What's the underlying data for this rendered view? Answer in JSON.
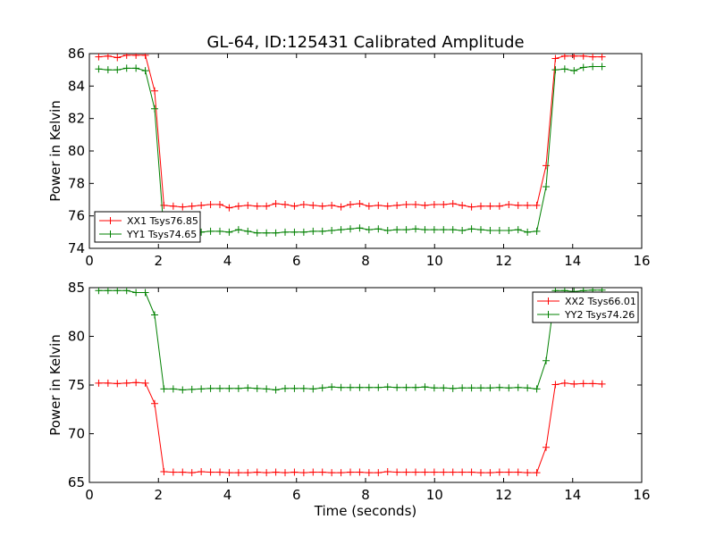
{
  "title": "GL-64, ID:125431 Calibrated Amplitude",
  "chart_data": [
    {
      "type": "line",
      "title": "GL-64, ID:125431 Calibrated Amplitude",
      "xlabel": "",
      "ylabel": "Power in Kelvin",
      "xlim": [
        0,
        16
      ],
      "ylim": [
        74,
        86
      ],
      "xticks": [
        0,
        2,
        4,
        6,
        8,
        10,
        12,
        14,
        16
      ],
      "yticks": [
        74,
        76,
        78,
        80,
        82,
        84,
        86
      ],
      "legend_position": "lower-left",
      "grid": false,
      "x": [
        0.27,
        0.54,
        0.81,
        1.08,
        1.35,
        1.62,
        1.89,
        2.16,
        2.43,
        2.7,
        2.97,
        3.24,
        3.51,
        3.78,
        4.05,
        4.32,
        4.59,
        4.86,
        5.13,
        5.4,
        5.67,
        5.94,
        6.21,
        6.48,
        6.75,
        7.02,
        7.29,
        7.56,
        7.83,
        8.1,
        8.37,
        8.64,
        8.91,
        9.18,
        9.45,
        9.72,
        9.99,
        10.26,
        10.53,
        10.8,
        11.07,
        11.34,
        11.61,
        11.88,
        12.15,
        12.42,
        12.69,
        12.96,
        13.23,
        13.5,
        13.77,
        14.04,
        14.31,
        14.58,
        14.85
      ],
      "series": [
        {
          "name": "XX1 Tsys76.85",
          "color": "#ff0000",
          "values": [
            85.8,
            85.85,
            85.75,
            85.9,
            85.9,
            85.9,
            83.7,
            76.65,
            76.6,
            76.55,
            76.6,
            76.65,
            76.7,
            76.7,
            76.5,
            76.6,
            76.65,
            76.6,
            76.6,
            76.75,
            76.7,
            76.6,
            76.7,
            76.65,
            76.6,
            76.65,
            76.55,
            76.7,
            76.75,
            76.6,
            76.65,
            76.6,
            76.65,
            76.7,
            76.7,
            76.65,
            76.7,
            76.7,
            76.75,
            76.65,
            76.55,
            76.6,
            76.6,
            76.6,
            76.7,
            76.65,
            76.65,
            76.65,
            79.1,
            85.7,
            85.85,
            85.85,
            85.85,
            85.8,
            85.8
          ]
        },
        {
          "name": "YY1 Tsys74.65",
          "color": "#008000",
          "values": [
            85.05,
            85.0,
            85.0,
            85.1,
            85.1,
            84.95,
            82.6,
            75.0,
            74.9,
            74.9,
            74.95,
            75.0,
            75.05,
            75.05,
            75.0,
            75.15,
            75.05,
            74.95,
            74.95,
            74.95,
            75.0,
            75.0,
            75.0,
            75.05,
            75.05,
            75.1,
            75.15,
            75.2,
            75.25,
            75.15,
            75.2,
            75.1,
            75.15,
            75.15,
            75.2,
            75.15,
            75.15,
            75.15,
            75.15,
            75.1,
            75.2,
            75.15,
            75.1,
            75.1,
            75.1,
            75.15,
            75.0,
            75.05,
            77.8,
            85.0,
            85.05,
            84.95,
            85.15,
            85.2,
            85.2
          ]
        }
      ]
    },
    {
      "type": "line",
      "title": "",
      "xlabel": "Time (seconds)",
      "ylabel": "Power in Kelvin",
      "xlim": [
        0,
        16
      ],
      "ylim": [
        65,
        85
      ],
      "xticks": [
        0,
        2,
        4,
        6,
        8,
        10,
        12,
        14,
        16
      ],
      "yticks": [
        65,
        70,
        75,
        80,
        85
      ],
      "legend_position": "upper-right",
      "grid": false,
      "x": [
        0.27,
        0.54,
        0.81,
        1.08,
        1.35,
        1.62,
        1.89,
        2.16,
        2.43,
        2.7,
        2.97,
        3.24,
        3.51,
        3.78,
        4.05,
        4.32,
        4.59,
        4.86,
        5.13,
        5.4,
        5.67,
        5.94,
        6.21,
        6.48,
        6.75,
        7.02,
        7.29,
        7.56,
        7.83,
        8.1,
        8.37,
        8.64,
        8.91,
        9.18,
        9.45,
        9.72,
        9.99,
        10.26,
        10.53,
        10.8,
        11.07,
        11.34,
        11.61,
        11.88,
        12.15,
        12.42,
        12.69,
        12.96,
        13.23,
        13.5,
        13.77,
        14.04,
        14.31,
        14.58,
        14.85
      ],
      "series": [
        {
          "name": "XX2 Tsys66.01",
          "color": "#ff0000",
          "values": [
            75.2,
            75.2,
            75.15,
            75.2,
            75.25,
            75.2,
            73.1,
            66.1,
            66.05,
            66.05,
            66.0,
            66.1,
            66.05,
            66.05,
            66.0,
            66.0,
            66.0,
            66.05,
            66.0,
            66.05,
            66.0,
            66.05,
            66.0,
            66.05,
            66.05,
            66.0,
            66.0,
            66.05,
            66.05,
            66.0,
            66.0,
            66.1,
            66.05,
            66.05,
            66.05,
            66.05,
            66.05,
            66.05,
            66.05,
            66.05,
            66.05,
            66.0,
            66.0,
            66.05,
            66.05,
            66.05,
            66.0,
            66.0,
            68.6,
            75.05,
            75.2,
            75.1,
            75.15,
            75.15,
            75.1
          ]
        },
        {
          "name": "YY2 Tsys74.26",
          "color": "#008000",
          "values": [
            84.7,
            84.7,
            84.7,
            84.7,
            84.5,
            84.5,
            82.2,
            74.6,
            74.6,
            74.5,
            74.55,
            74.6,
            74.65,
            74.65,
            74.65,
            74.65,
            74.7,
            74.65,
            74.6,
            74.5,
            74.65,
            74.65,
            74.65,
            74.6,
            74.7,
            74.8,
            74.75,
            74.75,
            74.75,
            74.75,
            74.75,
            74.8,
            74.75,
            74.75,
            74.75,
            74.8,
            74.7,
            74.7,
            74.65,
            74.7,
            74.7,
            74.7,
            74.7,
            74.75,
            74.7,
            74.75,
            74.7,
            74.6,
            77.5,
            84.7,
            84.7,
            84.6,
            84.7,
            84.75,
            84.75
          ]
        }
      ]
    }
  ]
}
